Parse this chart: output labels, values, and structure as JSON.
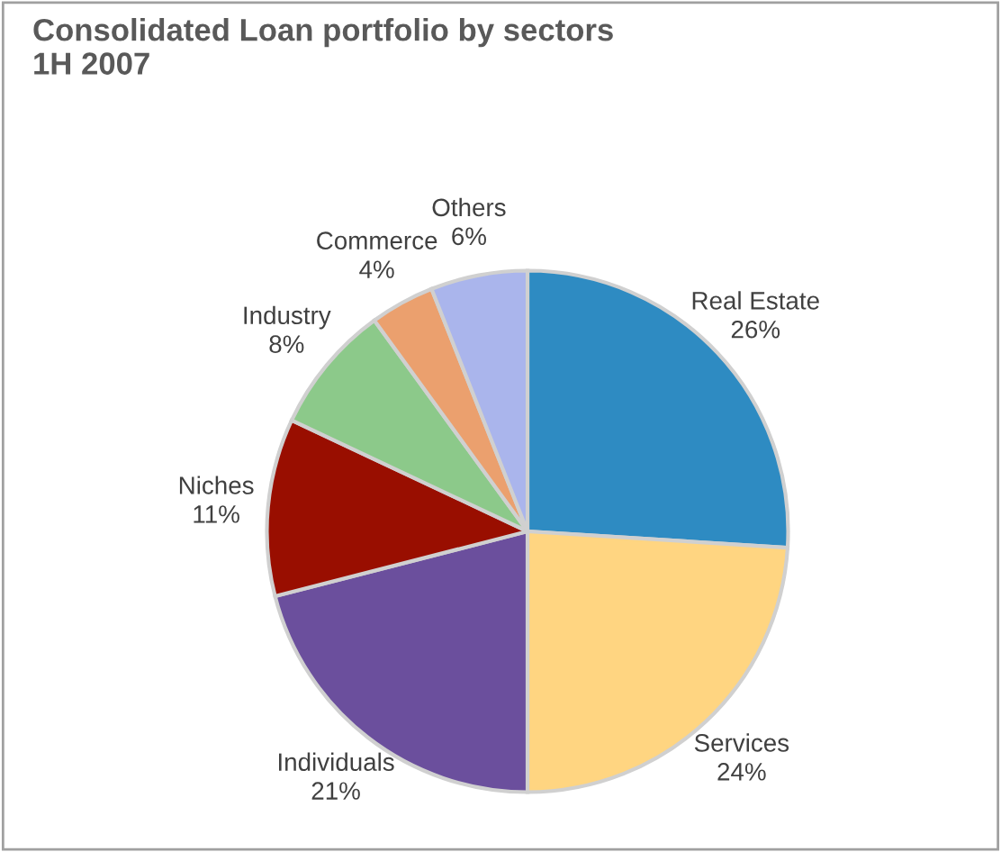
{
  "chart_data": {
    "type": "pie",
    "title": "Consolidated Loan portfolio by sectors\n1H 2007",
    "categories": [
      "Real Estate",
      "Services",
      "Individuals",
      "Niches",
      "Industry",
      "Commerce",
      "Others"
    ],
    "values": [
      26,
      24,
      21,
      11,
      8,
      4,
      6
    ],
    "value_labels": [
      "26%",
      "24%",
      "21%",
      "11%",
      "8%",
      "4%",
      "6%"
    ],
    "colors": [
      "#2e8bc2",
      "#ffd581",
      "#6b4f9d",
      "#990e00",
      "#8cc98a",
      "#eba06e",
      "#aab5ec"
    ],
    "legend": false
  }
}
